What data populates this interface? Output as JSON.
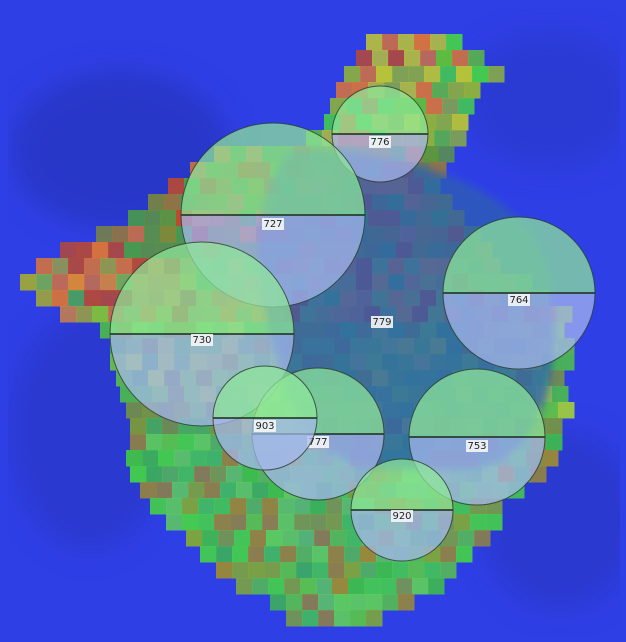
{
  "colors": {
    "background": "#2f3fe6",
    "heat_green": "#45cf4c",
    "heat_yellow": "#b9c536",
    "heat_orange": "#d9743a",
    "heat_red": "#c04a2a",
    "cell": "#2f5fb0",
    "circle_top": "#8fe89a",
    "circle_bottom": "#a7b8ee",
    "circle_edge": "#2a3a2a",
    "label_bg": "#f4f6f8"
  },
  "regions": [
    {
      "id": "776",
      "label": "776"
    },
    {
      "id": "727",
      "label": "727"
    },
    {
      "id": "779",
      "label": "779"
    },
    {
      "id": "764",
      "label": "764"
    },
    {
      "id": "730",
      "label": "730"
    },
    {
      "id": "903",
      "label": "903"
    },
    {
      "id": "777",
      "label": "777"
    },
    {
      "id": "753",
      "label": "753"
    },
    {
      "id": "920",
      "label": "920"
    }
  ]
}
